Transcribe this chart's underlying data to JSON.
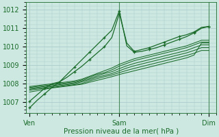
{
  "xlabel": "Pression niveau de la mer( hPa )",
  "yticks": [
    1007,
    1008,
    1009,
    1010,
    1011,
    1012
  ],
  "xtick_labels": [
    "Ven",
    "Sam",
    "Dim"
  ],
  "xtick_positions": [
    0,
    12,
    24
  ],
  "ylim": [
    1006.4,
    1012.4
  ],
  "xlim": [
    -0.5,
    25.0
  ],
  "bg_color": "#cce8e0",
  "grid_color": "#aacccc",
  "line_color": "#1a6b2a",
  "series": [
    [
      1006.7,
      1007.1,
      1007.45,
      1007.8,
      1008.1,
      1008.5,
      1008.9,
      1009.3,
      1009.7,
      1010.1,
      1010.5,
      1010.9,
      1011.95,
      1010.05,
      1009.7,
      1009.75,
      1009.85,
      1009.95,
      1010.1,
      1010.25,
      1010.4,
      1010.55,
      1010.75,
      1011.0,
      1011.1
    ],
    [
      1007.05,
      1007.4,
      1007.75,
      1008.0,
      1008.1,
      1008.35,
      1008.65,
      1008.95,
      1009.3,
      1009.65,
      1010.0,
      1010.5,
      1011.8,
      1010.2,
      1009.75,
      1009.85,
      1009.95,
      1010.1,
      1010.25,
      1010.4,
      1010.55,
      1010.65,
      1010.8,
      1011.05,
      1011.1
    ],
    [
      1007.85,
      1007.9,
      1007.95,
      1008.0,
      1008.05,
      1008.1,
      1008.15,
      1008.25,
      1008.4,
      1008.55,
      1008.7,
      1008.85,
      1009.05,
      1009.2,
      1009.35,
      1009.45,
      1009.55,
      1009.65,
      1009.75,
      1009.85,
      1009.95,
      1010.05,
      1010.2,
      1010.35,
      1010.35
    ],
    [
      1007.8,
      1007.85,
      1007.9,
      1007.95,
      1008.0,
      1008.05,
      1008.1,
      1008.2,
      1008.35,
      1008.5,
      1008.6,
      1008.75,
      1008.95,
      1009.1,
      1009.25,
      1009.35,
      1009.45,
      1009.55,
      1009.65,
      1009.75,
      1009.85,
      1009.95,
      1010.1,
      1010.25,
      1010.25
    ],
    [
      1007.75,
      1007.8,
      1007.85,
      1007.9,
      1007.95,
      1008.0,
      1008.05,
      1008.15,
      1008.28,
      1008.42,
      1008.55,
      1008.65,
      1008.82,
      1008.97,
      1009.1,
      1009.2,
      1009.3,
      1009.4,
      1009.5,
      1009.6,
      1009.7,
      1009.8,
      1009.95,
      1010.1,
      1010.1
    ],
    [
      1007.7,
      1007.75,
      1007.8,
      1007.85,
      1007.9,
      1007.95,
      1008.0,
      1008.1,
      1008.22,
      1008.35,
      1008.45,
      1008.55,
      1008.7,
      1008.85,
      1008.97,
      1009.07,
      1009.17,
      1009.27,
      1009.37,
      1009.47,
      1009.57,
      1009.67,
      1009.8,
      1009.95,
      1009.95
    ],
    [
      1007.65,
      1007.7,
      1007.75,
      1007.8,
      1007.85,
      1007.9,
      1007.95,
      1008.02,
      1008.15,
      1008.27,
      1008.38,
      1008.47,
      1008.6,
      1008.72,
      1008.83,
      1008.93,
      1009.03,
      1009.13,
      1009.23,
      1009.33,
      1009.43,
      1009.53,
      1009.65,
      1009.8,
      1009.8
    ],
    [
      1007.55,
      1007.62,
      1007.7,
      1007.77,
      1007.82,
      1007.87,
      1007.92,
      1007.97,
      1008.08,
      1008.18,
      1008.28,
      1008.38,
      1008.5,
      1008.6,
      1008.7,
      1008.8,
      1008.9,
      1009.0,
      1009.1,
      1009.2,
      1009.3,
      1009.4,
      1009.55,
      1010.2,
      1010.2
    ]
  ],
  "marker_series": [
    0,
    1
  ],
  "vlines": [
    12,
    24
  ],
  "n_points": 25
}
